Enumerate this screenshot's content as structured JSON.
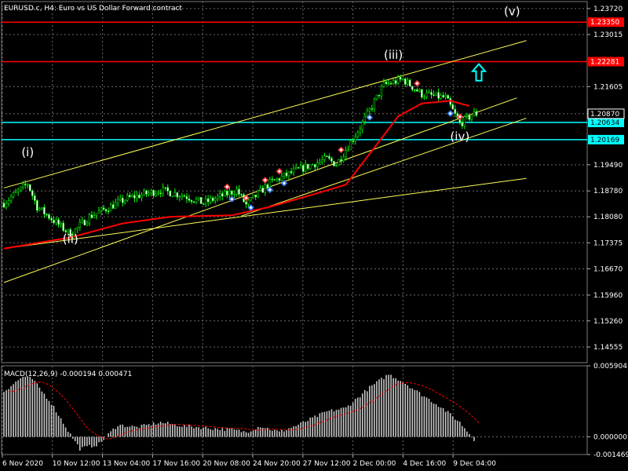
{
  "chart_data": {
    "type": "candlestick",
    "header": {
      "symbol": "EURUSD.c",
      "timeframe": "H4",
      "description": "Euro vs US Dollar Forward contract"
    },
    "price_axis": {
      "range": [
        1.14129,
        1.23908
      ],
      "ticks": [
        "1.23720",
        "1.23015",
        "1.21605",
        "1.20870",
        "1.19490",
        "1.18780",
        "1.18080",
        "1.17375",
        "1.16670",
        "1.15960",
        "1.15260",
        "1.14555"
      ]
    },
    "time_axis": {
      "labels": [
        "6 Nov 2020",
        "10 Nov 12:00",
        "13 Nov 04:00",
        "17 Nov 16:00",
        "20 Nov 08:00",
        "24 Nov 20:00",
        "27 Nov 12:00",
        "2 Dec 00:00",
        "4 Dec 16:00",
        "9 Dec 04:00"
      ]
    },
    "price_levels": [
      {
        "label": "1.23350",
        "price": 1.2335,
        "color": "#ff0000"
      },
      {
        "label": "1.22281",
        "price": 1.22281,
        "color": "#ff0000"
      },
      {
        "label": "1.20634",
        "price": 1.20634,
        "color": "#00ffff"
      },
      {
        "label": "1.20169",
        "price": 1.20169,
        "color": "#00ffff"
      }
    ],
    "current_price": {
      "label": "1.20870",
      "price": 1.2087
    },
    "wave_labels": [
      {
        "text": "(i)",
        "bar": 5,
        "price": 1.1972
      },
      {
        "text": "(ii)",
        "bar": 14,
        "price": 1.17375
      },
      {
        "text": "(iii)",
        "bar": 82,
        "price": 1.2236
      },
      {
        "text": "(iv)",
        "bar": 96,
        "price": 1.2015
      },
      {
        "text": "(v)",
        "bar": 107,
        "price": 1.2354
      }
    ],
    "trendlines": [
      {
        "from": {
          "bar": 0,
          "price": 1.1886
        },
        "to": {
          "bar": 110,
          "price": 1.2285
        },
        "color": "#ffff55"
      },
      {
        "from": {
          "bar": 0,
          "price": 1.163
        },
        "to": {
          "bar": 108,
          "price": 1.213
        },
        "color": "#ffff55"
      },
      {
        "from": {
          "bar": 50,
          "price": 1.181
        },
        "to": {
          "bar": 110,
          "price": 1.2075
        },
        "color": "#ffff55"
      },
      {
        "from": {
          "bar": 0,
          "price": 1.1722
        },
        "to": {
          "bar": 110,
          "price": 1.1912
        },
        "color": "#ffff55"
      }
    ],
    "arrow": {
      "bar": 100,
      "price": 1.2198,
      "color": "#00ffff",
      "direction": "up"
    },
    "candle_anchors": [
      [
        0,
        1.1845
      ],
      [
        5,
        1.1898
      ],
      [
        7,
        1.1835
      ],
      [
        14,
        1.176
      ],
      [
        18,
        1.1808
      ],
      [
        26,
        1.1858
      ],
      [
        33,
        1.188
      ],
      [
        38,
        1.1865
      ],
      [
        42,
        1.1845
      ],
      [
        49,
        1.188
      ],
      [
        51,
        1.184
      ],
      [
        56,
        1.19
      ],
      [
        61,
        1.193
      ],
      [
        68,
        1.1965
      ],
      [
        70,
        1.195
      ],
      [
        75,
        1.205
      ],
      [
        80,
        1.2165
      ],
      [
        84,
        1.218
      ],
      [
        88,
        1.214
      ],
      [
        93,
        1.213
      ],
      [
        96,
        1.206
      ],
      [
        99,
        1.2087
      ]
    ],
    "ma_anchors": [
      [
        0,
        1.1722
      ],
      [
        14,
        1.1752
      ],
      [
        25,
        1.179
      ],
      [
        35,
        1.1808
      ],
      [
        48,
        1.1812
      ],
      [
        56,
        1.1835
      ],
      [
        65,
        1.1868
      ],
      [
        72,
        1.1895
      ],
      [
        78,
        1.1995
      ],
      [
        83,
        1.208
      ],
      [
        88,
        1.2115
      ],
      [
        94,
        1.2122
      ],
      [
        98,
        1.2108
      ]
    ],
    "ma_color": "#ff0000",
    "marker_bars": [
      47,
      48,
      51,
      52,
      55,
      56,
      58,
      59,
      71,
      77,
      87,
      94,
      96
    ],
    "macd": {
      "label": "MACD(12,26,9) -0.000194 0.000471",
      "range": [
        -0.001469,
        0.005904
      ],
      "ticks": [
        "0.005904",
        "0.000000",
        "-0.001469"
      ],
      "histogram_anchors": [
        [
          0,
          0.0038
        ],
        [
          4,
          0.005
        ],
        [
          6,
          0.0048
        ],
        [
          10,
          0.0028
        ],
        [
          14,
          0.0002
        ],
        [
          16,
          -0.001
        ],
        [
          20,
          -0.0006
        ],
        [
          24,
          0.001
        ],
        [
          28,
          0.0008
        ],
        [
          33,
          0.0012
        ],
        [
          38,
          0.0009
        ],
        [
          44,
          0.0007
        ],
        [
          48,
          0.0006
        ],
        [
          51,
          0.0004
        ],
        [
          54,
          0.0009
        ],
        [
          58,
          0.0004
        ],
        [
          62,
          0.001
        ],
        [
          68,
          0.0021
        ],
        [
          72,
          0.0024
        ],
        [
          77,
          0.0041
        ],
        [
          81,
          0.0052
        ],
        [
          84,
          0.0046
        ],
        [
          88,
          0.0035
        ],
        [
          92,
          0.0025
        ],
        [
          96,
          0.0012
        ],
        [
          99,
          -0.0002
        ]
      ],
      "signal_color": "#ff0000",
      "histogram_color": "#c8c8c8"
    }
  }
}
